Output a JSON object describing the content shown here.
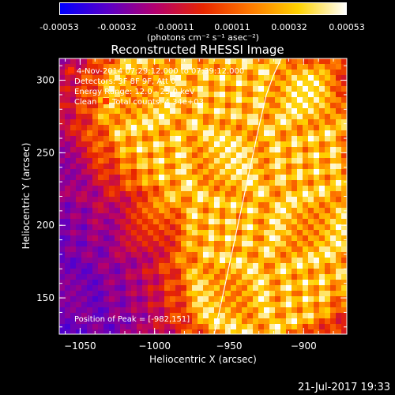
{
  "colorbar": {
    "ticks": [
      "-0.00053",
      "-0.00032",
      "-0.00011",
      "0.00011",
      "0.00032",
      "0.00053"
    ],
    "unit": "(photons cm⁻² s⁻¹ asec⁻²)",
    "range": [
      -0.00053,
      0.00053
    ],
    "colors": [
      "#0000ff",
      "#5a00c8",
      "#b4006e",
      "#e82600",
      "#ff7a00",
      "#ffd200",
      "#ffffff"
    ]
  },
  "chart_data": {
    "type": "heatmap",
    "title": "Reconstructed RHESSI Image",
    "xlabel": "Heliocentric X (arcsec)",
    "ylabel": "Heliocentric Y (arcsec)",
    "xlim": [
      -1064,
      -871
    ],
    "ylim": [
      125,
      315
    ],
    "xticks": [
      -1050,
      -1000,
      -950,
      -900
    ],
    "yticks": [
      150,
      200,
      250,
      300
    ],
    "xtick_labels": [
      "−1050",
      "−1000",
      "−950",
      "−900"
    ],
    "ytick_labels": [
      "150",
      "200",
      "250",
      "300"
    ],
    "limb_curve": {
      "x": [
        -960,
        -955,
        -950,
        -945,
        -940,
        -935,
        -930,
        -925,
        -920,
        -915
      ],
      "y": [
        125,
        148,
        172,
        196,
        220,
        244,
        268,
        290,
        304,
        315
      ]
    },
    "annotations": {
      "time_range": "4-Nov-2014 07:29:12.000 to 07:39:12.000",
      "detectors": "Detectors: 3F 8F 9F, Att 0",
      "energy_range": "Energy Range: 12.0 - 25.0 keV",
      "method": "Clean",
      "total_counts": "Total counts: 4.34e+03",
      "peak_position": "Position of Peak = [-982,151]"
    }
  },
  "footer": {
    "date": "21-Jul-2017 19:33"
  }
}
